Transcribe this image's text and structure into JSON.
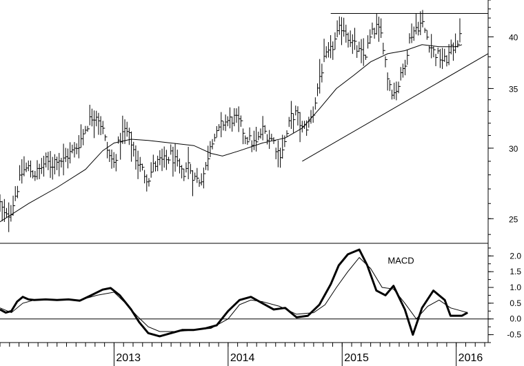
{
  "chart_data": [
    {
      "type": "ohlc",
      "scale": "log",
      "ylim": [
        23.5,
        44
      ],
      "y_ticks": [
        {
          "value": 25,
          "label": "25"
        },
        {
          "value": 30,
          "label": "30"
        },
        {
          "value": 35,
          "label": "35"
        },
        {
          "value": 40,
          "label": "40"
        }
      ],
      "price_points": [
        [
          2012.0,
          26.0
        ],
        [
          2012.05,
          25.0
        ],
        [
          2012.1,
          25.6
        ],
        [
          2012.15,
          27.0
        ],
        [
          2012.2,
          28.3
        ],
        [
          2012.25,
          28.5
        ],
        [
          2012.3,
          28.0
        ],
        [
          2012.35,
          28.4
        ],
        [
          2012.4,
          29.0
        ],
        [
          2012.45,
          28.7
        ],
        [
          2012.5,
          29.3
        ],
        [
          2012.55,
          29.0
        ],
        [
          2012.6,
          29.5
        ],
        [
          2012.65,
          29.8
        ],
        [
          2012.7,
          30.5
        ],
        [
          2012.75,
          31.6
        ],
        [
          2012.8,
          32.5
        ],
        [
          2012.85,
          32.8
        ],
        [
          2012.9,
          31.5
        ],
        [
          2012.95,
          29.5
        ],
        [
          2013.0,
          28.8
        ],
        [
          2013.05,
          30.7
        ],
        [
          2013.1,
          31.5
        ],
        [
          2013.15,
          30.5
        ],
        [
          2013.2,
          29.0
        ],
        [
          2013.25,
          28.3
        ],
        [
          2013.3,
          27.7
        ],
        [
          2013.35,
          28.7
        ],
        [
          2013.4,
          29.0
        ],
        [
          2013.45,
          29.0
        ],
        [
          2013.5,
          29.5
        ],
        [
          2013.55,
          28.7
        ],
        [
          2013.6,
          28.0
        ],
        [
          2013.65,
          28.8
        ],
        [
          2013.7,
          27.8
        ],
        [
          2013.75,
          27.6
        ],
        [
          2013.8,
          28.3
        ],
        [
          2013.85,
          30.7
        ],
        [
          2013.9,
          31.0
        ],
        [
          2013.95,
          32.0
        ],
        [
          2014.0,
          32.2
        ],
        [
          2014.05,
          32.4
        ],
        [
          2014.1,
          32.0
        ],
        [
          2014.15,
          31.0
        ],
        [
          2014.2,
          30.5
        ],
        [
          2014.25,
          30.3
        ],
        [
          2014.3,
          31.5
        ],
        [
          2014.35,
          31.0
        ],
        [
          2014.4,
          30.5
        ],
        [
          2014.45,
          29.5
        ],
        [
          2014.5,
          30.5
        ],
        [
          2014.55,
          32.5
        ],
        [
          2014.6,
          32.8
        ],
        [
          2014.65,
          31.5
        ],
        [
          2014.7,
          31.8
        ],
        [
          2014.75,
          33.0
        ],
        [
          2014.8,
          36.0
        ],
        [
          2014.85,
          37.8
        ],
        [
          2014.9,
          38.5
        ],
        [
          2014.95,
          40.0
        ],
        [
          2015.0,
          41.2
        ],
        [
          2015.05,
          40.2
        ],
        [
          2015.1,
          39.2
        ],
        [
          2015.15,
          38.4
        ],
        [
          2015.2,
          38.0
        ],
        [
          2015.25,
          40.0
        ],
        [
          2015.3,
          41.0
        ],
        [
          2015.35,
          40.0
        ],
        [
          2015.4,
          36.0
        ],
        [
          2015.45,
          34.5
        ],
        [
          2015.5,
          35.5
        ],
        [
          2015.55,
          37.5
        ],
        [
          2015.6,
          40.2
        ],
        [
          2015.65,
          41.0
        ],
        [
          2015.7,
          41.5
        ],
        [
          2015.75,
          39.8
        ],
        [
          2015.8,
          38.5
        ],
        [
          2015.85,
          38.0
        ],
        [
          2015.9,
          37.5
        ],
        [
          2015.95,
          38.5
        ],
        [
          2016.0,
          39.5
        ],
        [
          2016.05,
          40.0
        ]
      ],
      "moving_average": [
        [
          2012.0,
          24.8
        ],
        [
          2012.25,
          26.0
        ],
        [
          2012.5,
          27.1
        ],
        [
          2012.75,
          28.4
        ],
        [
          2012.9,
          29.8
        ],
        [
          2013.0,
          30.4
        ],
        [
          2013.15,
          30.7
        ],
        [
          2013.3,
          30.6
        ],
        [
          2013.5,
          30.4
        ],
        [
          2013.7,
          30.2
        ],
        [
          2013.85,
          29.6
        ],
        [
          2013.95,
          29.4
        ],
        [
          2014.1,
          29.8
        ],
        [
          2014.3,
          30.4
        ],
        [
          2014.5,
          30.8
        ],
        [
          2014.65,
          31.6
        ],
        [
          2014.8,
          33.2
        ],
        [
          2014.95,
          35.0
        ],
        [
          2015.1,
          36.2
        ],
        [
          2015.25,
          37.5
        ],
        [
          2015.4,
          38.3
        ],
        [
          2015.55,
          38.6
        ],
        [
          2015.7,
          39.2
        ],
        [
          2015.85,
          39.0
        ],
        [
          2016.0,
          39.0
        ],
        [
          2016.05,
          39.2
        ]
      ],
      "trend_lines": [
        {
          "from": [
            2014.65,
            29.0
          ],
          "to": [
            2016.28,
            38.3
          ]
        },
        {
          "from": [
            2014.9,
            42.5
          ],
          "to": [
            2016.28,
            42.5
          ]
        }
      ]
    },
    {
      "type": "line",
      "annotation": "MACD",
      "ylim": [
        -0.75,
        2.4
      ],
      "y_ticks": [
        {
          "value": 2.0,
          "label": "2.0"
        },
        {
          "value": 1.5,
          "label": "1.5"
        },
        {
          "value": 1.0,
          "label": "1.0"
        },
        {
          "value": 0.5,
          "label": "0.5"
        },
        {
          "value": 0.0,
          "label": "0.0"
        },
        {
          "value": -0.5,
          "label": "-0.5"
        }
      ],
      "zero_line": 0,
      "series": [
        {
          "style": "thick",
          "points": [
            [
              2012.0,
              0.3
            ],
            [
              2012.05,
              0.2
            ],
            [
              2012.1,
              0.25
            ],
            [
              2012.15,
              0.55
            ],
            [
              2012.2,
              0.7
            ],
            [
              2012.25,
              0.62
            ],
            [
              2012.3,
              0.6
            ],
            [
              2012.4,
              0.62
            ],
            [
              2012.5,
              0.6
            ],
            [
              2012.6,
              0.62
            ],
            [
              2012.7,
              0.58
            ],
            [
              2012.8,
              0.75
            ],
            [
              2012.9,
              0.93
            ],
            [
              2012.97,
              0.98
            ],
            [
              2013.05,
              0.75
            ],
            [
              2013.15,
              0.3
            ],
            [
              2013.22,
              -0.1
            ],
            [
              2013.3,
              -0.45
            ],
            [
              2013.4,
              -0.55
            ],
            [
              2013.5,
              -0.45
            ],
            [
              2013.6,
              -0.35
            ],
            [
              2013.7,
              -0.35
            ],
            [
              2013.8,
              -0.3
            ],
            [
              2013.9,
              -0.2
            ],
            [
              2014.0,
              0.25
            ],
            [
              2014.1,
              0.6
            ],
            [
              2014.2,
              0.7
            ],
            [
              2014.3,
              0.5
            ],
            [
              2014.4,
              0.3
            ],
            [
              2014.5,
              0.35
            ],
            [
              2014.6,
              0.05
            ],
            [
              2014.7,
              0.1
            ],
            [
              2014.8,
              0.45
            ],
            [
              2014.9,
              1.1
            ],
            [
              2014.97,
              1.7
            ],
            [
              2015.05,
              2.05
            ],
            [
              2015.15,
              2.2
            ],
            [
              2015.22,
              1.7
            ],
            [
              2015.3,
              0.9
            ],
            [
              2015.38,
              0.75
            ],
            [
              2015.45,
              1.05
            ],
            [
              2015.55,
              0.3
            ],
            [
              2015.62,
              -0.5
            ],
            [
              2015.7,
              0.35
            ],
            [
              2015.8,
              0.9
            ],
            [
              2015.9,
              0.6
            ],
            [
              2015.95,
              0.1
            ],
            [
              2016.05,
              0.1
            ],
            [
              2016.1,
              0.2
            ]
          ]
        },
        {
          "style": "thin",
          "points": [
            [
              2012.0,
              0.35
            ],
            [
              2012.1,
              0.2
            ],
            [
              2012.2,
              0.5
            ],
            [
              2012.3,
              0.6
            ],
            [
              2012.5,
              0.6
            ],
            [
              2012.7,
              0.6
            ],
            [
              2012.85,
              0.75
            ],
            [
              2013.0,
              0.85
            ],
            [
              2013.1,
              0.5
            ],
            [
              2013.2,
              0.1
            ],
            [
              2013.3,
              -0.25
            ],
            [
              2013.4,
              -0.4
            ],
            [
              2013.55,
              -0.4
            ],
            [
              2013.7,
              -0.35
            ],
            [
              2013.85,
              -0.3
            ],
            [
              2014.0,
              0.0
            ],
            [
              2014.1,
              0.45
            ],
            [
              2014.2,
              0.6
            ],
            [
              2014.3,
              0.55
            ],
            [
              2014.45,
              0.4
            ],
            [
              2014.6,
              0.15
            ],
            [
              2014.75,
              0.2
            ],
            [
              2014.85,
              0.45
            ],
            [
              2014.95,
              1.0
            ],
            [
              2015.05,
              1.5
            ],
            [
              2015.15,
              1.95
            ],
            [
              2015.25,
              1.6
            ],
            [
              2015.35,
              1.0
            ],
            [
              2015.45,
              0.95
            ],
            [
              2015.55,
              0.5
            ],
            [
              2015.65,
              0.0
            ],
            [
              2015.75,
              0.4
            ],
            [
              2015.85,
              0.6
            ],
            [
              2015.95,
              0.35
            ],
            [
              2016.05,
              0.25
            ],
            [
              2016.1,
              0.2
            ]
          ]
        }
      ]
    }
  ],
  "time_axis": {
    "xlim": [
      2012.0,
      2016.28
    ],
    "major_ticks": [
      2013,
      2014,
      2015,
      2016
    ],
    "labels": [
      "2013",
      "2014",
      "2015",
      "2016"
    ]
  }
}
